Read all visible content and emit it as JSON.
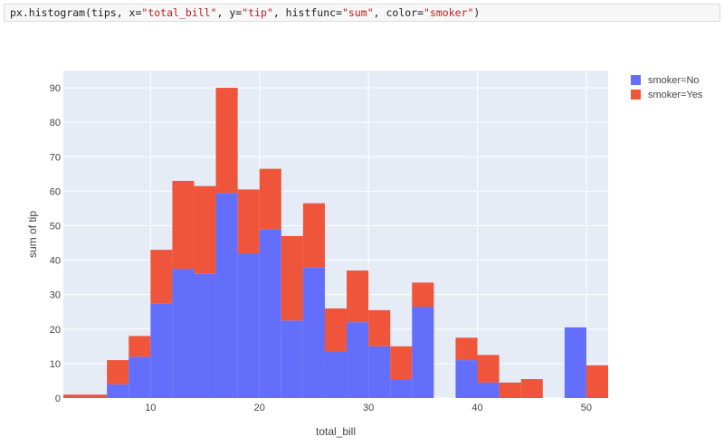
{
  "code": {
    "fn": "px.histogram(tips, x=",
    "x_str": "\"total_bill\"",
    "sep1": ", y=",
    "y_str": "\"tip\"",
    "sep2": ", histfunc=",
    "hf_str": "\"sum\"",
    "sep3": ", color=",
    "c_str": "\"smoker\"",
    "end": ")"
  },
  "chart_data": {
    "type": "bar",
    "barmode": "stack",
    "title": "",
    "xlabel": "total_bill",
    "ylabel": "sum of tip",
    "xlim": [
      2,
      52
    ],
    "ylim": [
      0,
      95
    ],
    "xticks": [
      10,
      20,
      30,
      40,
      50
    ],
    "yticks": [
      0,
      10,
      20,
      30,
      40,
      50,
      60,
      70,
      80,
      90
    ],
    "bin_width": 2,
    "bin_starts": [
      2,
      4,
      6,
      8,
      10,
      12,
      14,
      16,
      18,
      20,
      22,
      24,
      26,
      28,
      30,
      32,
      34,
      36,
      38,
      40,
      42,
      44,
      46,
      48,
      50
    ],
    "series": [
      {
        "name": "smoker=No",
        "color": "#636efa",
        "values": [
          0,
          0,
          4,
          12,
          27.5,
          37.5,
          36,
          59.5,
          42,
          49,
          22.5,
          38,
          13.5,
          22,
          15,
          5.5,
          26.5,
          0,
          11,
          4.5,
          0,
          0,
          0,
          20.5,
          0
        ]
      },
      {
        "name": "smoker=Yes",
        "color": "#ef553b",
        "values": [
          1,
          1,
          7,
          6,
          15.5,
          25.5,
          25.5,
          30.5,
          18.5,
          17.5,
          24.5,
          18.5,
          12.5,
          15,
          10.5,
          9.5,
          7,
          0,
          6.5,
          8,
          4.5,
          5.5,
          0,
          0,
          9.5
        ]
      }
    ],
    "grid": true,
    "legend_position": "top-right"
  }
}
